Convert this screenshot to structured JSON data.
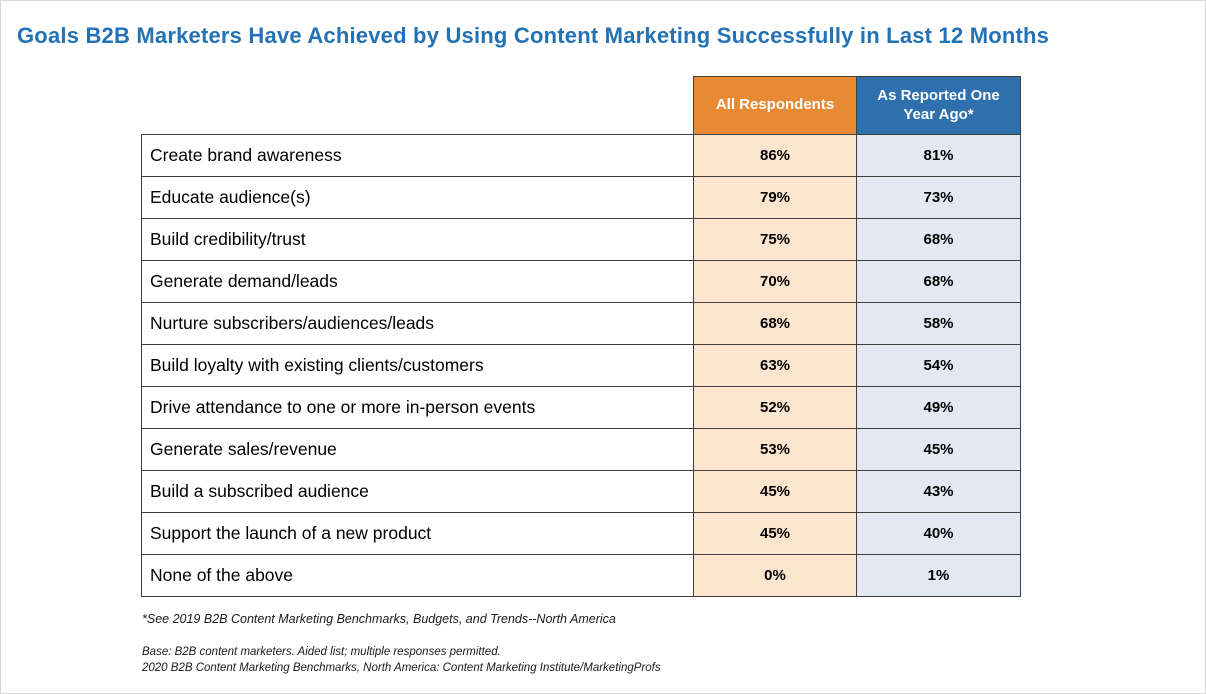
{
  "page": {
    "title": "Goals B2B Marketers Have Achieved by Using Content Marketing Successfully in Last 12 Months"
  },
  "colors": {
    "title_blue": "#2272B5",
    "header_orange": "#E88A33",
    "header_blue": "#2E6FAD",
    "cell_orange": "#FBE5CF",
    "cell_blue": "#E2E9F2",
    "cell_border": "#3F3F3F"
  },
  "table": {
    "columns": [
      {
        "label": "All Respondents"
      },
      {
        "label": "As Reported One Year Ago*"
      }
    ],
    "rows": [
      {
        "label": "Create brand awareness",
        "all": "86%",
        "year": "81%"
      },
      {
        "label": "Educate audience(s)",
        "all": "79%",
        "year": "73%"
      },
      {
        "label": "Build credibility/trust",
        "all": "75%",
        "year": "68%"
      },
      {
        "label": "Generate demand/leads",
        "all": "70%",
        "year": "68%"
      },
      {
        "label": "Nurture subscribers/audiences/leads",
        "all": "68%",
        "year": "58%"
      },
      {
        "label": "Build loyalty with existing clients/customers",
        "all": "63%",
        "year": "54%"
      },
      {
        "label": "Drive attendance to one or more in-person events",
        "all": "52%",
        "year": "49%"
      },
      {
        "label": "Generate sales/revenue",
        "all": "53%",
        "year": "45%"
      },
      {
        "label": "Build a subscribed audience",
        "all": "45%",
        "year": "43%"
      },
      {
        "label": "Support the launch of a new product",
        "all": "45%",
        "year": "40%"
      },
      {
        "label": "None of the above",
        "all": "0%",
        "year": "1%"
      }
    ]
  },
  "footnotes": {
    "reference": "*See 2019 B2B Content Marketing Benchmarks, Budgets, and Trends--North America",
    "base": "Base: B2B content marketers. Aided list; multiple responses permitted.",
    "source": "2020 B2B Content Marketing Benchmarks, North America: Content Marketing Institute/MarketingProfs"
  },
  "chart_data": {
    "type": "table",
    "title": "Goals B2B Marketers Have Achieved by Using Content Marketing Successfully in Last 12 Months",
    "categories": [
      "Create brand awareness",
      "Educate audience(s)",
      "Build credibility/trust",
      "Generate demand/leads",
      "Nurture subscribers/audiences/leads",
      "Build loyalty with existing clients/customers",
      "Drive attendance to one or more in-person events",
      "Generate sales/revenue",
      "Build a subscribed audience",
      "Support the launch of a new product",
      "None of the above"
    ],
    "series": [
      {
        "name": "All Respondents",
        "values": [
          86,
          79,
          75,
          70,
          68,
          63,
          52,
          53,
          45,
          45,
          0
        ]
      },
      {
        "name": "As Reported One Year Ago*",
        "values": [
          81,
          73,
          68,
          68,
          58,
          54,
          49,
          45,
          43,
          40,
          1
        ]
      }
    ],
    "unit": "%",
    "legend_position": "top",
    "grid": false
  }
}
